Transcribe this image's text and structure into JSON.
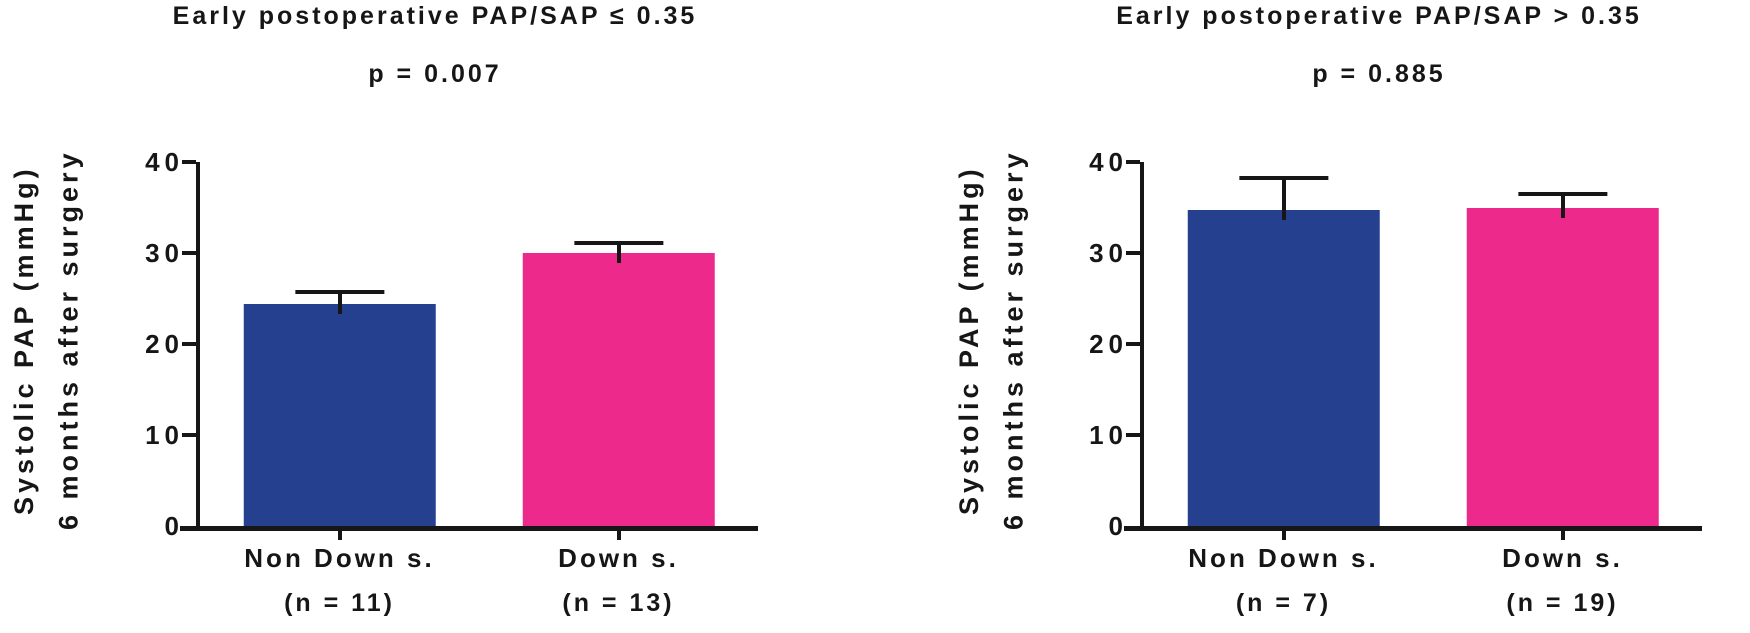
{
  "figure": {
    "background": "#ffffff",
    "text_color": "#161616",
    "axis_color": "#161616"
  },
  "chart_data": [
    {
      "type": "bar",
      "title": "Early postoperative PAP/SAP ≤ 0.35",
      "p_label": "p = 0.007",
      "ylabel_lines": [
        "Systolic PAP (mmHg)",
        "6 months after surgery"
      ],
      "ylim": [
        0,
        40
      ],
      "y_ticks": [
        "0",
        "10",
        "20",
        "30",
        "40"
      ],
      "grid": false,
      "legend": "none",
      "categories": [
        "Non Down s.",
        "Down s."
      ],
      "bars": [
        {
          "category": "Non Down s.",
          "n_label": "(n = 11)",
          "value": 24.4,
          "sem": 1.3,
          "color": "#24408F"
        },
        {
          "category": "Down s.",
          "n_label": "(n = 13)",
          "value": 30.0,
          "sem": 1.1,
          "color": "#ED298B"
        }
      ]
    },
    {
      "type": "bar",
      "title": "Early postoperative PAP/SAP > 0.35",
      "p_label": "p = 0.885",
      "ylabel_lines": [
        "Systolic PAP (mmHg)",
        "6 months after surgery"
      ],
      "ylim": [
        0,
        40
      ],
      "y_ticks": [
        "0",
        "10",
        "20",
        "30",
        "40"
      ],
      "grid": false,
      "legend": "none",
      "categories": [
        "Non Down s.",
        "Down s."
      ],
      "bars": [
        {
          "category": "Non Down s.",
          "n_label": "(n = 7)",
          "value": 34.7,
          "sem": 3.5,
          "color": "#24408F"
        },
        {
          "category": "Down s.",
          "n_label": "(n = 19)",
          "value": 34.9,
          "sem": 1.6,
          "color": "#ED298B"
        }
      ]
    }
  ]
}
